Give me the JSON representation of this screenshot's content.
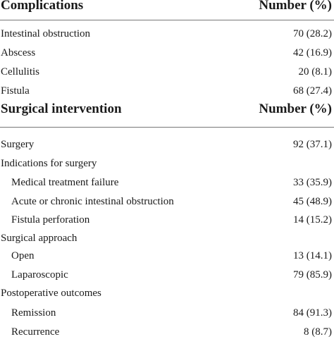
{
  "section1": {
    "header_label": "Complications",
    "header_value": "Number (%)",
    "rows": [
      {
        "label": "Intestinal obstruction",
        "value": "70 (28.2)"
      },
      {
        "label": "Abscess",
        "value": "42 (16.9)"
      },
      {
        "label": "Cellulitis",
        "value": "20 (8.1)"
      },
      {
        "label": "Fistula",
        "value": "68 (27.4)"
      }
    ]
  },
  "section2": {
    "header_label": "Surgical intervention",
    "header_value": "Number (%)",
    "rows": [
      {
        "label": "Surgery",
        "value": "92 (37.1)"
      },
      {
        "label": "Indications for surgery",
        "value": ""
      },
      {
        "label": "Medical treatment failure",
        "value": "33 (35.9)"
      },
      {
        "label": "Acute or chronic intestinal obstruction",
        "value": "45 (48.9)"
      },
      {
        "label": "Fistula perforation",
        "value": "14 (15.2)"
      },
      {
        "label": "Surgical approach",
        "value": ""
      },
      {
        "label": "Open",
        "value": "13 (14.1)"
      },
      {
        "label": "Laparoscopic",
        "value": "79 (85.9)"
      },
      {
        "label": "Postoperative outcomes",
        "value": ""
      },
      {
        "label": "Remission",
        "value": "84 (91.3)"
      },
      {
        "label": "Recurrence",
        "value": "8 (8.7)"
      }
    ]
  }
}
